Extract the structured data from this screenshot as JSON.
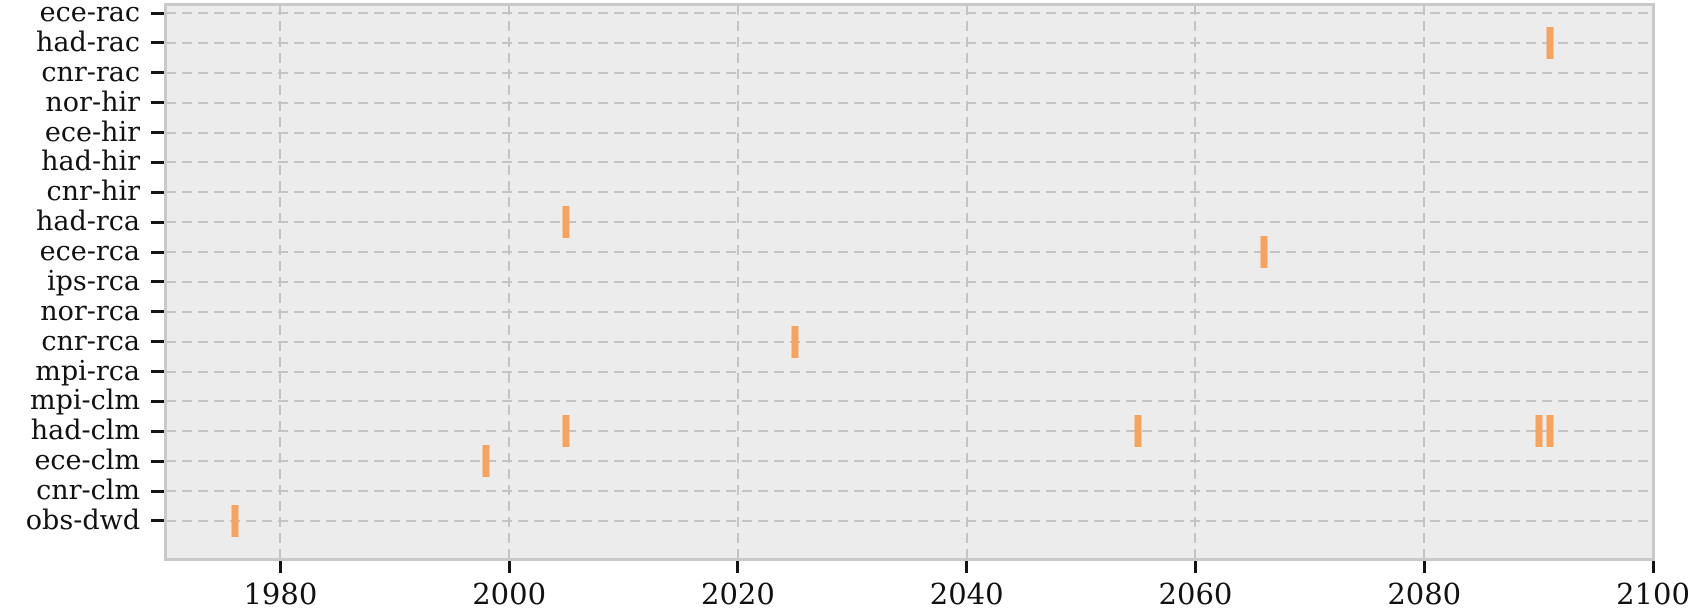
{
  "chart_data": {
    "type": "scatter",
    "title": "",
    "xlabel": "",
    "ylabel": "",
    "categories": [
      "ece-rac",
      "had-rac",
      "cnr-rac",
      "nor-hir",
      "ece-hir",
      "had-hir",
      "cnr-hir",
      "had-rca",
      "ece-rca",
      "ips-rca",
      "nor-rca",
      "cnr-rca",
      "mpi-rca",
      "mpi-clm",
      "had-clm",
      "ece-clm",
      "cnr-clm",
      "obs-dwd"
    ],
    "xlim": [
      1970,
      2100
    ],
    "xticks": [
      1980,
      2000,
      2020,
      2040,
      2060,
      2080,
      2100
    ],
    "xtick_labels": [
      "1980",
      "2000",
      "2020",
      "2040",
      "2060",
      "2080",
      "2100"
    ],
    "grid": "dashed",
    "legend": "none",
    "marker_style": "vertical-tick",
    "points": [
      {
        "category": "had-rac",
        "year": 2091
      },
      {
        "category": "had-rca",
        "year": 2005
      },
      {
        "category": "ece-rca",
        "year": 2066
      },
      {
        "category": "cnr-rca",
        "year": 2025
      },
      {
        "category": "had-clm",
        "year": 2005
      },
      {
        "category": "had-clm",
        "year": 2055
      },
      {
        "category": "had-clm",
        "year": 2090
      },
      {
        "category": "had-clm",
        "year": 2091
      },
      {
        "category": "ece-clm",
        "year": 1998
      },
      {
        "category": "obs-dwd",
        "year": 1976
      }
    ],
    "colors": {
      "marker": "#f4a460",
      "plot_background": "#ececec",
      "grid": "#c4c4c4",
      "spine": "#c9c9c9",
      "tick": "#141414",
      "label_text": "#111111",
      "page_background": "#ffffff"
    }
  }
}
